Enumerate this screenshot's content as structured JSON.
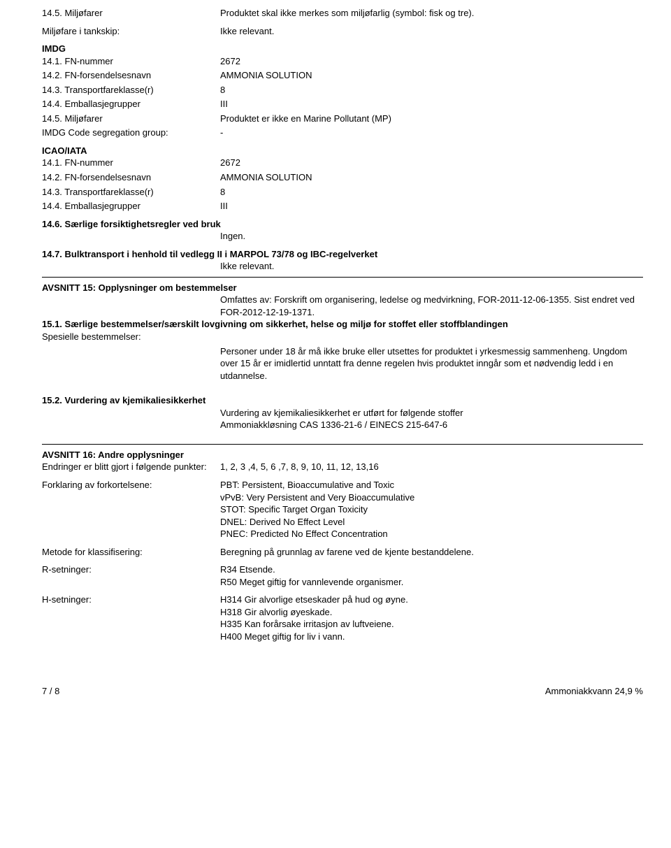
{
  "s14_5": {
    "label1": "14.5. Miljøfarer",
    "value1": "Produktet skal ikke merkes som miljøfarlig (symbol: fisk og tre).",
    "label2": "Miljøfare i tankskip:",
    "value2": "Ikke relevant."
  },
  "imdg": {
    "heading": "IMDG",
    "r1_l": "14.1. FN-nummer",
    "r1_v": "2672",
    "r2_l": "14.2. FN-forsendelsesnavn",
    "r2_v": "AMMONIA SOLUTION",
    "r3_l": "14.3. Transportfareklasse(r)",
    "r3_v": "8",
    "r4_l": "14.4. Emballasjegrupper",
    "r4_v": "III",
    "r5_l": "14.5. Miljøfarer",
    "r5_v": "Produktet er ikke en Marine Pollutant (MP)",
    "r6_l": "IMDG Code segregation group:",
    "r6_v": "-"
  },
  "icao": {
    "heading": "ICAO/IATA",
    "r1_l": "14.1. FN-nummer",
    "r1_v": "2672",
    "r2_l": "14.2. FN-forsendelsesnavn",
    "r2_v": "AMMONIA SOLUTION",
    "r3_l": "14.3. Transportfareklasse(r)",
    "r3_v": "8",
    "r4_l": "14.4. Emballasjegrupper",
    "r4_v": "III"
  },
  "s14_6": {
    "heading": "14.6. Særlige forsiktighetsregler ved bruk",
    "value": "Ingen."
  },
  "s14_7": {
    "heading": "14.7. Bulktransport i henhold til vedlegg II i MARPOL 73/78 og IBC-regelverket",
    "value": "Ikke relevant."
  },
  "s15": {
    "heading": "AVSNITT 15: Opplysninger om bestemmelser",
    "omfattes": "Omfattes av:  Forskrift om organisering, ledelse og medvirkning, FOR-2011-12-06-1355. Sist endret ved FOR-2012-12-19-1371.",
    "s15_1_heading": "15.1. Særlige bestemmelser/særskilt lovgivning om sikkerhet, helse og miljø for stoffet eller stoffblandingen",
    "spesielle_label": "Spesielle bestemmelser:",
    "spesielle_text": "Personer under 18 år må ikke bruke eller utsettes for produktet i yrkesmessig sammenheng. Ungdom over 15 år er imidlertid unntatt fra denne regelen hvis produktet inngår som et nødvendig ledd i en utdannelse.",
    "s15_2_heading": "15.2. Vurdering av kjemikaliesikkerhet",
    "s15_2_l1": "Vurdering av kjemikaliesikkerhet er utført for følgende stoffer",
    "s15_2_l2": "Ammoniakkløsning CAS 1336-21-6 / EINECS 215-647-6"
  },
  "s16": {
    "heading": "AVSNITT 16: Andre opplysninger",
    "endringer_label": "Endringer er blitt gjort i følgende punkter:",
    "endringer_value": "1, 2, 3 ,4, 5, 6 ,7, 8, 9, 10, 11, 12, 13,16",
    "forklaring_label": "Forklaring av forkortelsene:",
    "fk1": "PBT: Persistent, Bioaccumulative and Toxic",
    "fk2": "vPvB: Very Persistent and Very Bioaccumulative",
    "fk3": "STOT: Specific Target Organ Toxicity",
    "fk4": "DNEL: Derived No Effect Level",
    "fk5": "PNEC: Predicted No Effect Concentration",
    "metode_label": "Metode for klassifisering:",
    "metode_value": "Beregning på grunnlag av farene ved de kjente bestanddelene.",
    "r_label": "R-setninger:",
    "r1": "R34 Etsende.",
    "r2": "R50 Meget giftig for vannlevende organismer.",
    "h_label": "H-setninger:",
    "h1": "H314 Gir alvorlige etseskader på hud og øyne.",
    "h2": "H318 Gir alvorlig øyeskade.",
    "h3": "H335 Kan forårsake irritasjon av luftveiene.",
    "h4": "H400 Meget giftig for liv i vann."
  },
  "footer": {
    "page": "7 / 8",
    "product": "Ammoniakkvann 24,9 %"
  }
}
